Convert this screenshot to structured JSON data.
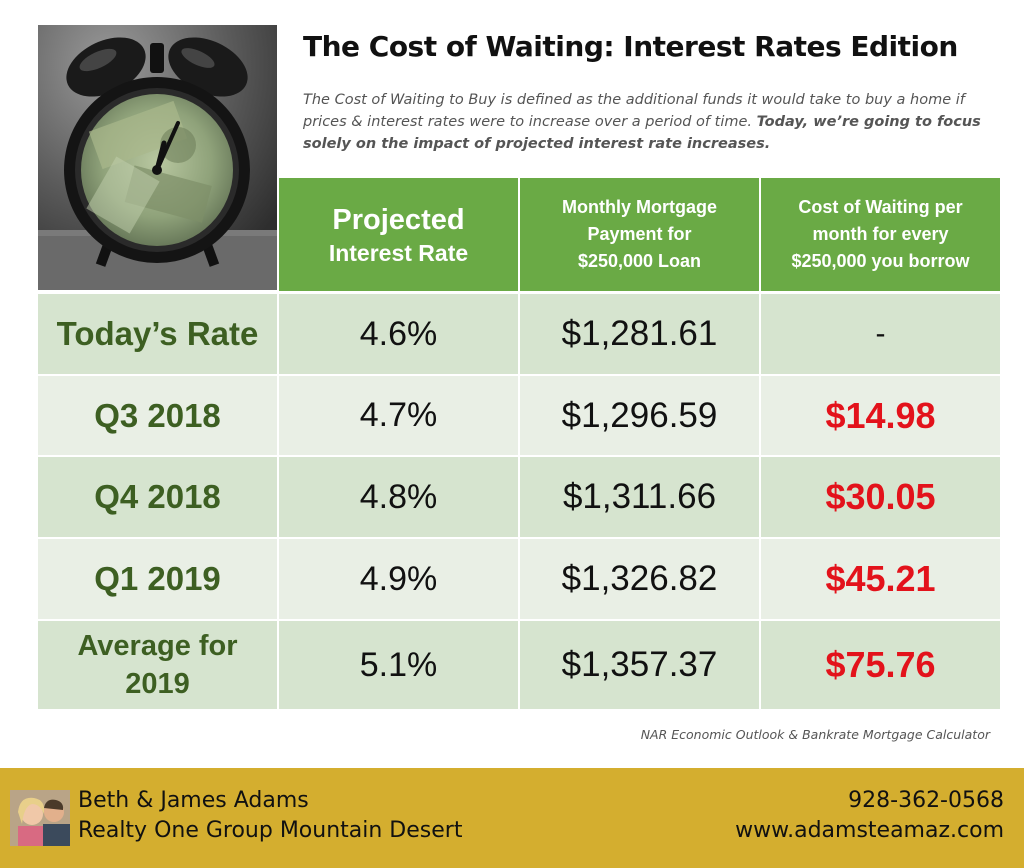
{
  "header": {
    "title": "The Cost of Waiting: Interest Rates Edition",
    "intro_plain": "The Cost of Waiting to Buy is defined as the additional funds it would take to buy a home if prices & interest rates were to increase over a period of time. ",
    "intro_bold": "Today, we’re going to focus solely on the impact of projected interest rate increases."
  },
  "table": {
    "headers": {
      "rate_line1": "Projected",
      "rate_line2": "Interest Rate",
      "payment": [
        "Monthly Mortgage",
        "Payment for",
        "$250,000 Loan"
      ],
      "cost": [
        "Cost of Waiting per",
        "month for every",
        "$250,000 you borrow"
      ]
    },
    "rows": [
      {
        "label": "Today’s Rate",
        "rate": "4.6%",
        "payment": "$1,281.61",
        "cost": "-"
      },
      {
        "label": "Q3 2018",
        "rate": "4.7%",
        "payment": "$1,296.59",
        "cost": "$14.98"
      },
      {
        "label": "Q4 2018",
        "rate": "4.8%",
        "payment": "$1,311.66",
        "cost": "$30.05"
      },
      {
        "label": "Q1 2019",
        "rate": "4.9%",
        "payment": "$1,326.82",
        "cost": "$45.21"
      },
      {
        "label_line1": "Average for",
        "label_line2": "2019",
        "rate": "5.1%",
        "payment": "$1,357.37",
        "cost": "$75.76"
      }
    ]
  },
  "source": "NAR Economic Outlook & Bankrate Mortgage Calculator",
  "footer": {
    "names": "Beth & James Adams",
    "brokerage": "Realty One Group Mountain Desert",
    "phone": "928-362-0568",
    "website": "www.adamsteamaz.com"
  },
  "images": {
    "hero": "alarm-clock-with-money-photo",
    "avatar": "agents-portrait-photo"
  },
  "colors": {
    "header_green": "#6aaa45",
    "row_dark": "#d6e4cf",
    "row_light": "#e9efe5",
    "label_green": "#3d5f22",
    "cost_red": "#e3121b",
    "footer_gold": "#d4ae2f"
  }
}
